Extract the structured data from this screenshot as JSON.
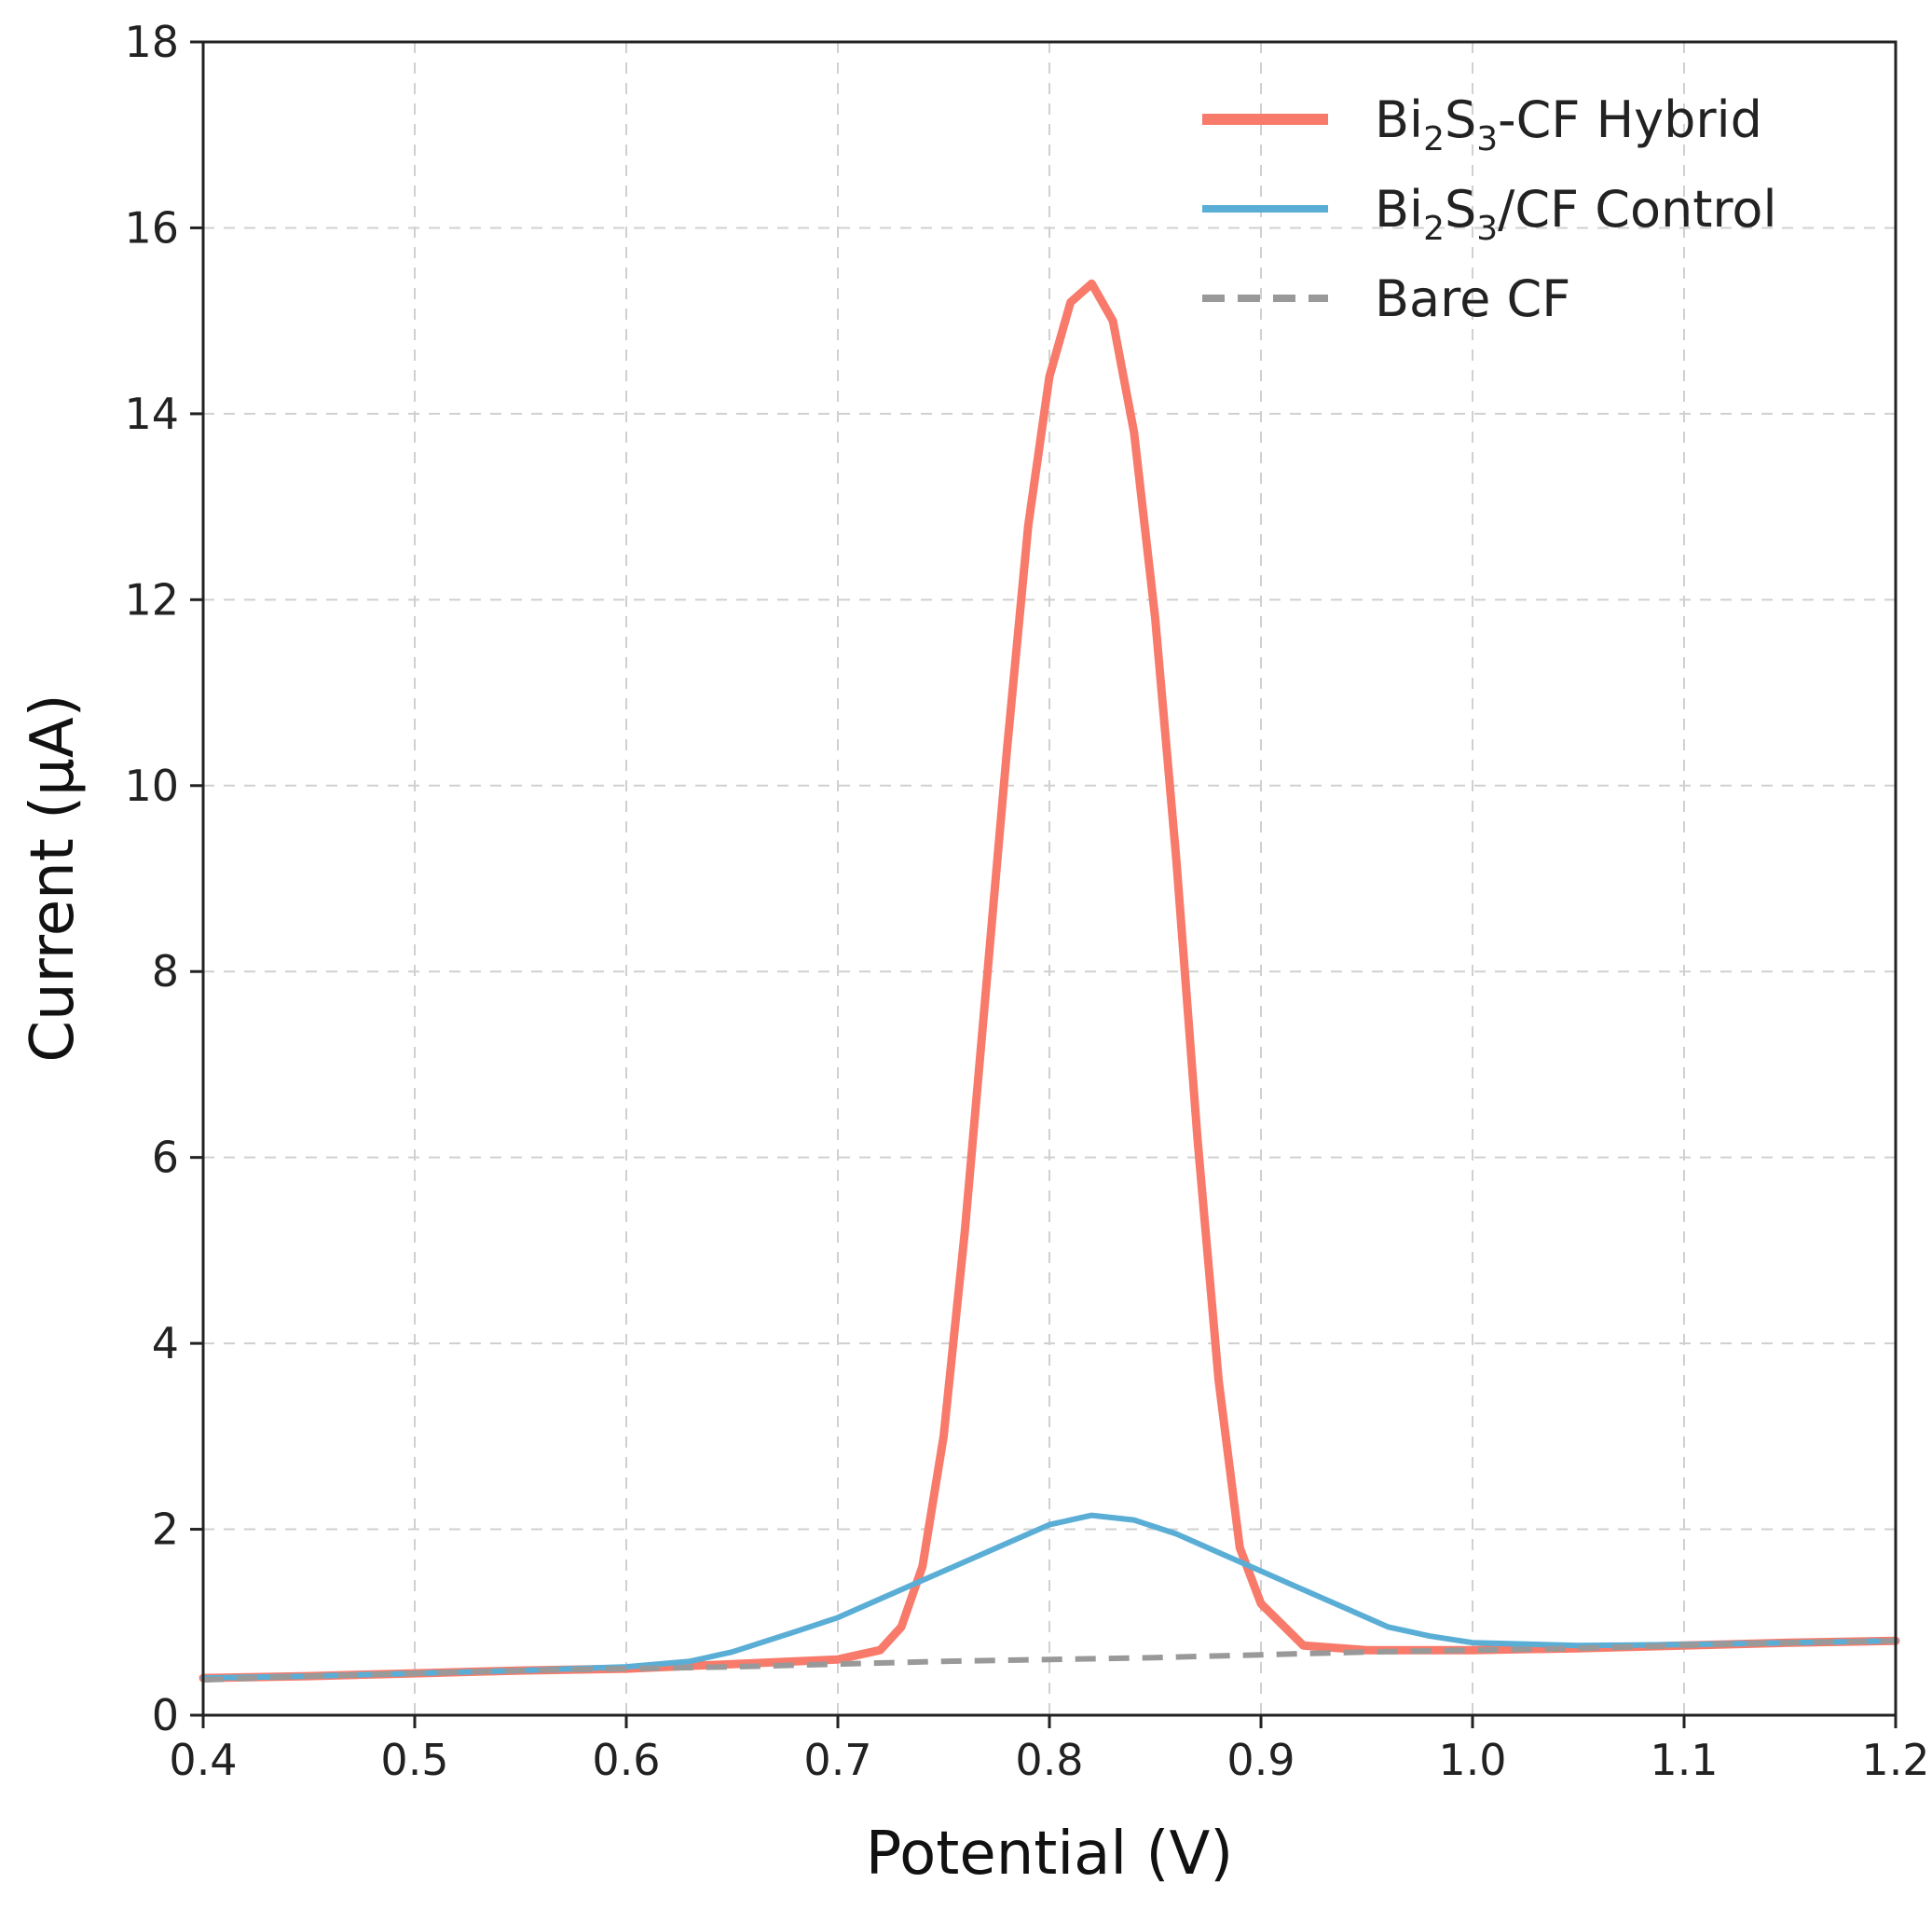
{
  "chart_data": {
    "type": "line",
    "title": "",
    "xlabel": "Potential (V)",
    "ylabel": "Current (μA)",
    "xlim": [
      0.4,
      1.2
    ],
    "ylim": [
      0,
      18
    ],
    "xticks": [
      "0.4",
      "0.5",
      "0.6",
      "0.7",
      "0.8",
      "0.9",
      "1.0",
      "1.1",
      "1.2"
    ],
    "yticks": [
      "0",
      "2",
      "4",
      "6",
      "8",
      "10",
      "12",
      "14",
      "16",
      "18"
    ],
    "grid": true,
    "legend_position": "top-right",
    "series": [
      {
        "name": "Bi2S3-CF Hybrid",
        "legend_parts": [
          "Bi",
          "2",
          "S",
          "3",
          "-CF Hybrid"
        ],
        "color": "#f87a6a",
        "style": "solid",
        "width": "thick",
        "x": [
          0.4,
          0.45,
          0.5,
          0.55,
          0.6,
          0.65,
          0.7,
          0.72,
          0.73,
          0.74,
          0.75,
          0.76,
          0.77,
          0.78,
          0.79,
          0.8,
          0.81,
          0.82,
          0.83,
          0.84,
          0.85,
          0.86,
          0.87,
          0.88,
          0.89,
          0.9,
          0.92,
          0.95,
          1.0,
          1.05,
          1.1,
          1.15,
          1.2
        ],
        "y": [
          0.4,
          0.42,
          0.45,
          0.48,
          0.5,
          0.55,
          0.6,
          0.7,
          0.95,
          1.6,
          3.0,
          5.2,
          7.8,
          10.4,
          12.8,
          14.4,
          15.2,
          15.4,
          15.0,
          13.8,
          11.8,
          9.2,
          6.2,
          3.6,
          1.8,
          1.2,
          0.75,
          0.7,
          0.7,
          0.72,
          0.75,
          0.78,
          0.8
        ]
      },
      {
        "name": "Bi2S3/CF Control",
        "legend_parts": [
          "Bi",
          "2",
          "S",
          "3",
          "/CF Control"
        ],
        "color": "#5aaed6",
        "style": "solid",
        "width": "normal",
        "x": [
          0.4,
          0.45,
          0.5,
          0.55,
          0.6,
          0.63,
          0.65,
          0.68,
          0.7,
          0.72,
          0.75,
          0.78,
          0.8,
          0.82,
          0.84,
          0.86,
          0.88,
          0.9,
          0.92,
          0.94,
          0.96,
          0.98,
          1.0,
          1.05,
          1.1,
          1.15,
          1.2
        ],
        "y": [
          0.4,
          0.42,
          0.45,
          0.48,
          0.52,
          0.58,
          0.68,
          0.9,
          1.05,
          1.25,
          1.55,
          1.85,
          2.05,
          2.15,
          2.1,
          1.95,
          1.75,
          1.55,
          1.35,
          1.15,
          0.95,
          0.85,
          0.78,
          0.75,
          0.76,
          0.78,
          0.8
        ]
      },
      {
        "name": "Bare CF",
        "legend_parts": [
          "Bare CF"
        ],
        "color": "#999999",
        "style": "dashed",
        "width": "normal",
        "x": [
          0.4,
          0.45,
          0.5,
          0.55,
          0.6,
          0.65,
          0.7,
          0.75,
          0.8,
          0.85,
          0.9,
          0.95,
          1.0,
          1.05,
          1.1,
          1.15,
          1.2
        ],
        "y": [
          0.38,
          0.42,
          0.45,
          0.48,
          0.5,
          0.52,
          0.55,
          0.58,
          0.6,
          0.62,
          0.65,
          0.68,
          0.7,
          0.72,
          0.75,
          0.78,
          0.8
        ]
      }
    ]
  }
}
